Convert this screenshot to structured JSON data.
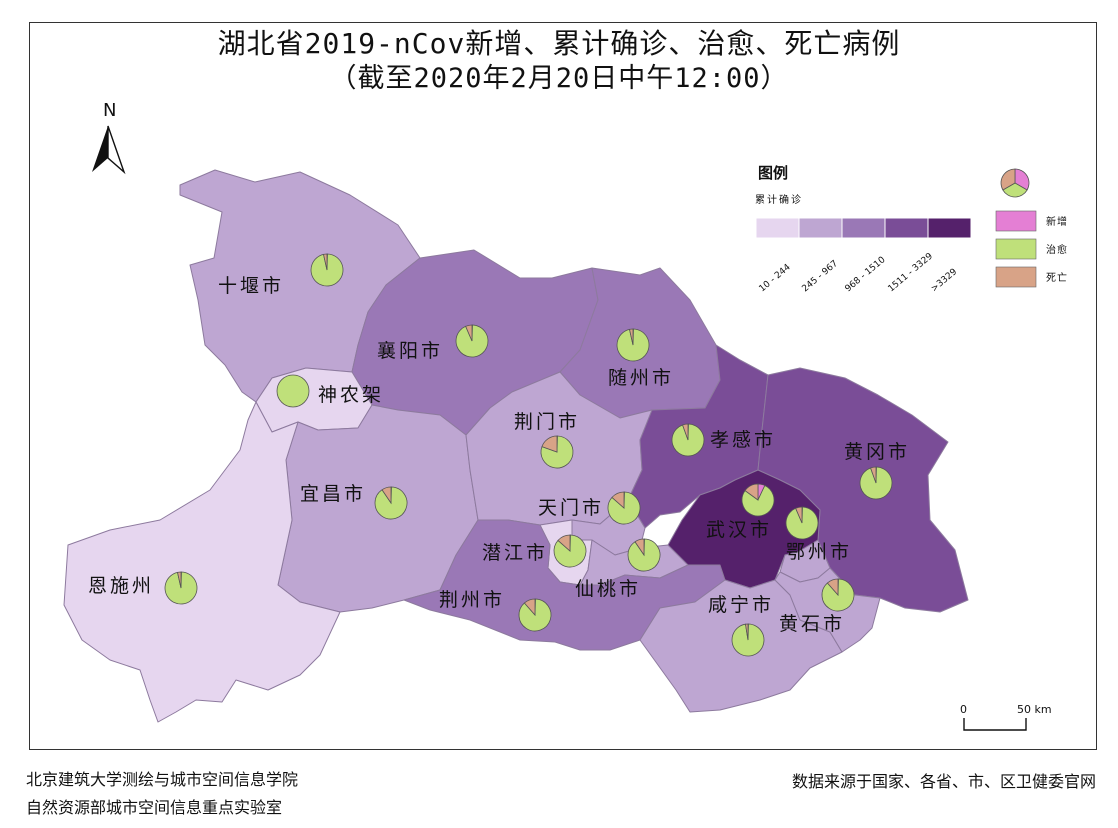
{
  "title": {
    "line1": "湖北省2019-nCov新增、累计确诊、治愈、死亡病例",
    "line2": "（截至2020年2月20日中午12:00）"
  },
  "north_arrow": {
    "label": "N"
  },
  "legend": {
    "title": "图例",
    "subtitle": "累计确诊",
    "classes": [
      {
        "label": "10 - 244",
        "color": "#e6d6ef"
      },
      {
        "label": "245 - 967",
        "color": "#bea6d2"
      },
      {
        "label": "968 - 1510",
        "color": "#9a78b6"
      },
      {
        "label": "1511 - 3329",
        "color": "#7a4d97"
      },
      {
        "label": ">3329",
        "color": "#55216b"
      }
    ]
  },
  "pie_legend": {
    "items": [
      {
        "label": "新增",
        "color": "#e47fd4"
      },
      {
        "label": "治愈",
        "color": "#bfe07a"
      },
      {
        "label": "死亡",
        "color": "#d8a387"
      }
    ]
  },
  "map": {
    "regions": [
      {
        "id": "shiyan",
        "label": "十堰市",
        "class": 1
      },
      {
        "id": "xiangyang",
        "label": "襄阳市",
        "class": 2
      },
      {
        "id": "suizhou",
        "label": "随州市",
        "class": 2
      },
      {
        "id": "shennongjia",
        "label": "神农架",
        "class": 0
      },
      {
        "id": "yichang",
        "label": "宜昌市",
        "class": 1
      },
      {
        "id": "jingmen",
        "label": "荆门市",
        "class": 1
      },
      {
        "id": "xiaogan",
        "label": "孝感市",
        "class": 3
      },
      {
        "id": "huanggang",
        "label": "黄冈市",
        "class": 3
      },
      {
        "id": "enshi",
        "label": "恩施州",
        "class": 0
      },
      {
        "id": "tianmen",
        "label": "天门市",
        "class": 1
      },
      {
        "id": "qianjiang",
        "label": "潜江市",
        "class": 0
      },
      {
        "id": "xiantao",
        "label": "仙桃市",
        "class": 1
      },
      {
        "id": "jingzhou",
        "label": "荆州市",
        "class": 2
      },
      {
        "id": "wuhan",
        "label": "武汉市",
        "class": 4
      },
      {
        "id": "ezhou",
        "label": "鄂州市",
        "class": 1
      },
      {
        "id": "xianning",
        "label": "咸宁市",
        "class": 1
      },
      {
        "id": "huangshi",
        "label": "黄石市",
        "class": 1
      }
    ]
  },
  "scale_bar": {
    "left_label": "0",
    "right_label": "50 km"
  },
  "footer": {
    "institution_line1": "北京建筑大学测绘与城市空间信息学院",
    "institution_line2": "自然资源部城市空间信息重点实验室",
    "source": "数据来源于国家、各省、市、区卫健委官网"
  }
}
